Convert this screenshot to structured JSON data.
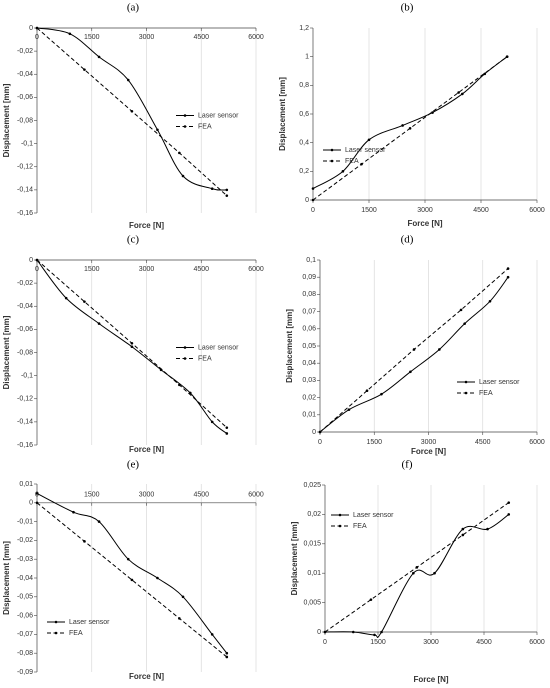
{
  "chart_data": [
    {
      "type": "line",
      "title": "(a)",
      "x_label": "Force [N]",
      "y_label": "Displacement [mm]",
      "xlim": [
        0,
        6000
      ],
      "xticks": [
        0,
        1500,
        3000,
        4500,
        6000
      ],
      "ylim": [
        -0.16,
        0
      ],
      "yticks": [
        0,
        {
          "value": -0.02,
          "label": "-0,02"
        },
        {
          "value": -0.04,
          "label": "-0,04"
        },
        {
          "value": -0.06,
          "label": "-0,06"
        },
        {
          "value": -0.08,
          "label": "-0,08"
        },
        {
          "value": -0.1,
          "label": "-0,1"
        },
        {
          "value": -0.12,
          "label": "-0,12"
        },
        {
          "value": -0.14,
          "label": "-0,14"
        },
        {
          "value": -0.16,
          "label": "-0,16"
        }
      ],
      "grid": true,
      "legend": "center right",
      "series": [
        {
          "name": "Laser sensor",
          "color": "#000000",
          "style": "solid",
          "x": [
            0,
            900,
            1700,
            2500,
            3300,
            4000,
            4800,
            5200
          ],
          "values": [
            0,
            -0.005,
            -0.025,
            -0.045,
            -0.088,
            -0.128,
            -0.139,
            -0.14
          ]
        },
        {
          "name": "FEA",
          "color": "#000000",
          "style": "dashed",
          "x": [
            0,
            1300,
            2600,
            3900,
            5200
          ],
          "values": [
            0,
            -0.036,
            -0.072,
            -0.108,
            -0.145
          ]
        }
      ]
    },
    {
      "type": "line",
      "title": "(b)",
      "x_label": "Force [N]",
      "y_label": "Displacement [mm]",
      "xlim": [
        0,
        6000
      ],
      "xticks": [
        0,
        1500,
        3000,
        4500,
        6000
      ],
      "ylim": [
        0,
        1.2
      ],
      "yticks": [
        0,
        {
          "value": 0.2,
          "label": "0,2"
        },
        {
          "value": 0.4,
          "label": "0,4"
        },
        {
          "value": 0.6,
          "label": "0,6"
        },
        {
          "value": 0.8,
          "label": "0,8"
        },
        1,
        {
          "value": 1.2,
          "label": "1,2"
        }
      ],
      "grid": true,
      "legend": "lower left",
      "series": [
        {
          "name": "Laser sensor",
          "color": "#000000",
          "style": "solid",
          "x": [
            0,
            800,
            1500,
            2400,
            3200,
            4000,
            4600,
            5200
          ],
          "values": [
            0.08,
            0.2,
            0.42,
            0.52,
            0.61,
            0.74,
            0.88,
            1.0
          ]
        },
        {
          "name": "FEA",
          "color": "#000000",
          "style": "dashed",
          "x": [
            0,
            1300,
            2600,
            3900,
            5200
          ],
          "values": [
            0,
            0.25,
            0.5,
            0.75,
            1.0
          ]
        }
      ]
    },
    {
      "type": "line",
      "title": "(c)",
      "x_label": "Force [N]",
      "y_label": "Displacement [mm]",
      "xlim": [
        0,
        6000
      ],
      "xticks": [
        0,
        1500,
        3000,
        4500,
        6000
      ],
      "ylim": [
        -0.16,
        0
      ],
      "yticks": [
        0,
        {
          "value": -0.02,
          "label": "-0,02"
        },
        {
          "value": -0.04,
          "label": "-0,04"
        },
        {
          "value": -0.06,
          "label": "-0,06"
        },
        {
          "value": -0.08,
          "label": "-0,08"
        },
        {
          "value": -0.1,
          "label": "-0,1"
        },
        {
          "value": -0.12,
          "label": "-0,12"
        },
        {
          "value": -0.14,
          "label": "-0,14"
        },
        {
          "value": -0.16,
          "label": "-0,16"
        }
      ],
      "grid": true,
      "legend": "center right",
      "series": [
        {
          "name": "Laser sensor",
          "color": "#000000",
          "style": "solid",
          "x": [
            0,
            800,
            1700,
            2600,
            3400,
            4200,
            4800,
            5200
          ],
          "values": [
            0,
            -0.033,
            -0.055,
            -0.075,
            -0.095,
            -0.115,
            -0.14,
            -0.15
          ]
        },
        {
          "name": "FEA",
          "color": "#000000",
          "style": "dashed",
          "x": [
            0,
            1300,
            2600,
            3900,
            5200
          ],
          "values": [
            0,
            -0.036,
            -0.072,
            -0.108,
            -0.145
          ]
        }
      ]
    },
    {
      "type": "line",
      "title": "(d)",
      "x_label": "Force [N]",
      "y_label": "Displacement [mm]",
      "xlim": [
        0,
        6000
      ],
      "xticks": [
        0,
        1500,
        3000,
        4500,
        6000
      ],
      "ylim": [
        0,
        0.1
      ],
      "yticks": [
        0,
        {
          "value": 0.01,
          "label": "0,01"
        },
        {
          "value": 0.02,
          "label": "0,02"
        },
        {
          "value": 0.03,
          "label": "0,03"
        },
        {
          "value": 0.04,
          "label": "0,04"
        },
        {
          "value": 0.05,
          "label": "0,05"
        },
        {
          "value": 0.06,
          "label": "0,06"
        },
        {
          "value": 0.07,
          "label": "0,07"
        },
        {
          "value": 0.08,
          "label": "0,08"
        },
        {
          "value": 0.09,
          "label": "0,09"
        },
        {
          "value": 0.1,
          "label": "0,1"
        }
      ],
      "grid": true,
      "legend": "lower right",
      "series": [
        {
          "name": "Laser sensor",
          "color": "#000000",
          "style": "solid",
          "x": [
            0,
            800,
            1700,
            2500,
            3300,
            4000,
            4700,
            5200
          ],
          "values": [
            0,
            0.013,
            0.022,
            0.035,
            0.048,
            0.063,
            0.076,
            0.09
          ]
        },
        {
          "name": "FEA",
          "color": "#000000",
          "style": "dashed",
          "x": [
            0,
            1300,
            2600,
            3900,
            5200
          ],
          "values": [
            0,
            0.024,
            0.048,
            0.071,
            0.095
          ]
        }
      ]
    },
    {
      "type": "line",
      "title": "(e)",
      "x_label": "Force [N]",
      "y_label": "Displacement [mm]",
      "xlim": [
        0,
        6000
      ],
      "xticks": [
        0,
        1500,
        3000,
        4500,
        6000
      ],
      "ylim": [
        -0.09,
        0.01
      ],
      "yticks": [
        {
          "value": 0.01,
          "label": "0,01"
        },
        0,
        {
          "value": -0.01,
          "label": "-0,01"
        },
        {
          "value": -0.02,
          "label": "-0,02"
        },
        {
          "value": -0.03,
          "label": "-0,03"
        },
        {
          "value": -0.04,
          "label": "-0,04"
        },
        {
          "value": -0.05,
          "label": "-0,05"
        },
        {
          "value": -0.06,
          "label": "-0,06"
        },
        {
          "value": -0.07,
          "label": "-0,07"
        },
        {
          "value": -0.08,
          "label": "-0,08"
        },
        {
          "value": -0.09,
          "label": "-0,09"
        }
      ],
      "grid": true,
      "legend": "lower left",
      "series": [
        {
          "name": "Laser sensor",
          "color": "#000000",
          "style": "solid",
          "x": [
            0,
            1000,
            1700,
            2500,
            3300,
            4000,
            4800,
            5200
          ],
          "values": [
            0.005,
            -0.005,
            -0.01,
            -0.03,
            -0.04,
            -0.05,
            -0.07,
            -0.08
          ]
        },
        {
          "name": "FEA",
          "color": "#000000",
          "style": "dashed",
          "x": [
            0,
            1300,
            2600,
            3900,
            5200
          ],
          "values": [
            0,
            -0.0205,
            -0.041,
            -0.0615,
            -0.082
          ]
        }
      ]
    },
    {
      "type": "line",
      "title": "(f)",
      "x_label": "Force [N]",
      "y_label": "Displacement [mm]",
      "xlim": [
        0,
        6000
      ],
      "xticks": [
        0,
        1500,
        3000,
        4500,
        6000
      ],
      "ylim": [
        0,
        0.025
      ],
      "yticks": [
        0,
        {
          "value": 0.005,
          "label": "0,005"
        },
        {
          "value": 0.01,
          "label": "0,01"
        },
        {
          "value": 0.015,
          "label": "0,015"
        },
        {
          "value": 0.02,
          "label": "0,02"
        },
        {
          "value": 0.025,
          "label": "0,025"
        }
      ],
      "grid": true,
      "legend": "upper left",
      "series": [
        {
          "name": "Laser sensor",
          "color": "#000000",
          "style": "solid",
          "x": [
            0,
            800,
            1400,
            1600,
            2500,
            3100,
            3900,
            4600,
            5200
          ],
          "values": [
            0,
            0,
            -0.0005,
            0,
            0.01,
            0.01,
            0.0175,
            0.0175,
            0.02
          ]
        },
        {
          "name": "FEA",
          "color": "#000000",
          "style": "dashed",
          "x": [
            0,
            1300,
            2600,
            3900,
            5200
          ],
          "values": [
            0,
            0.0055,
            0.011,
            0.0165,
            0.022
          ]
        }
      ]
    }
  ]
}
